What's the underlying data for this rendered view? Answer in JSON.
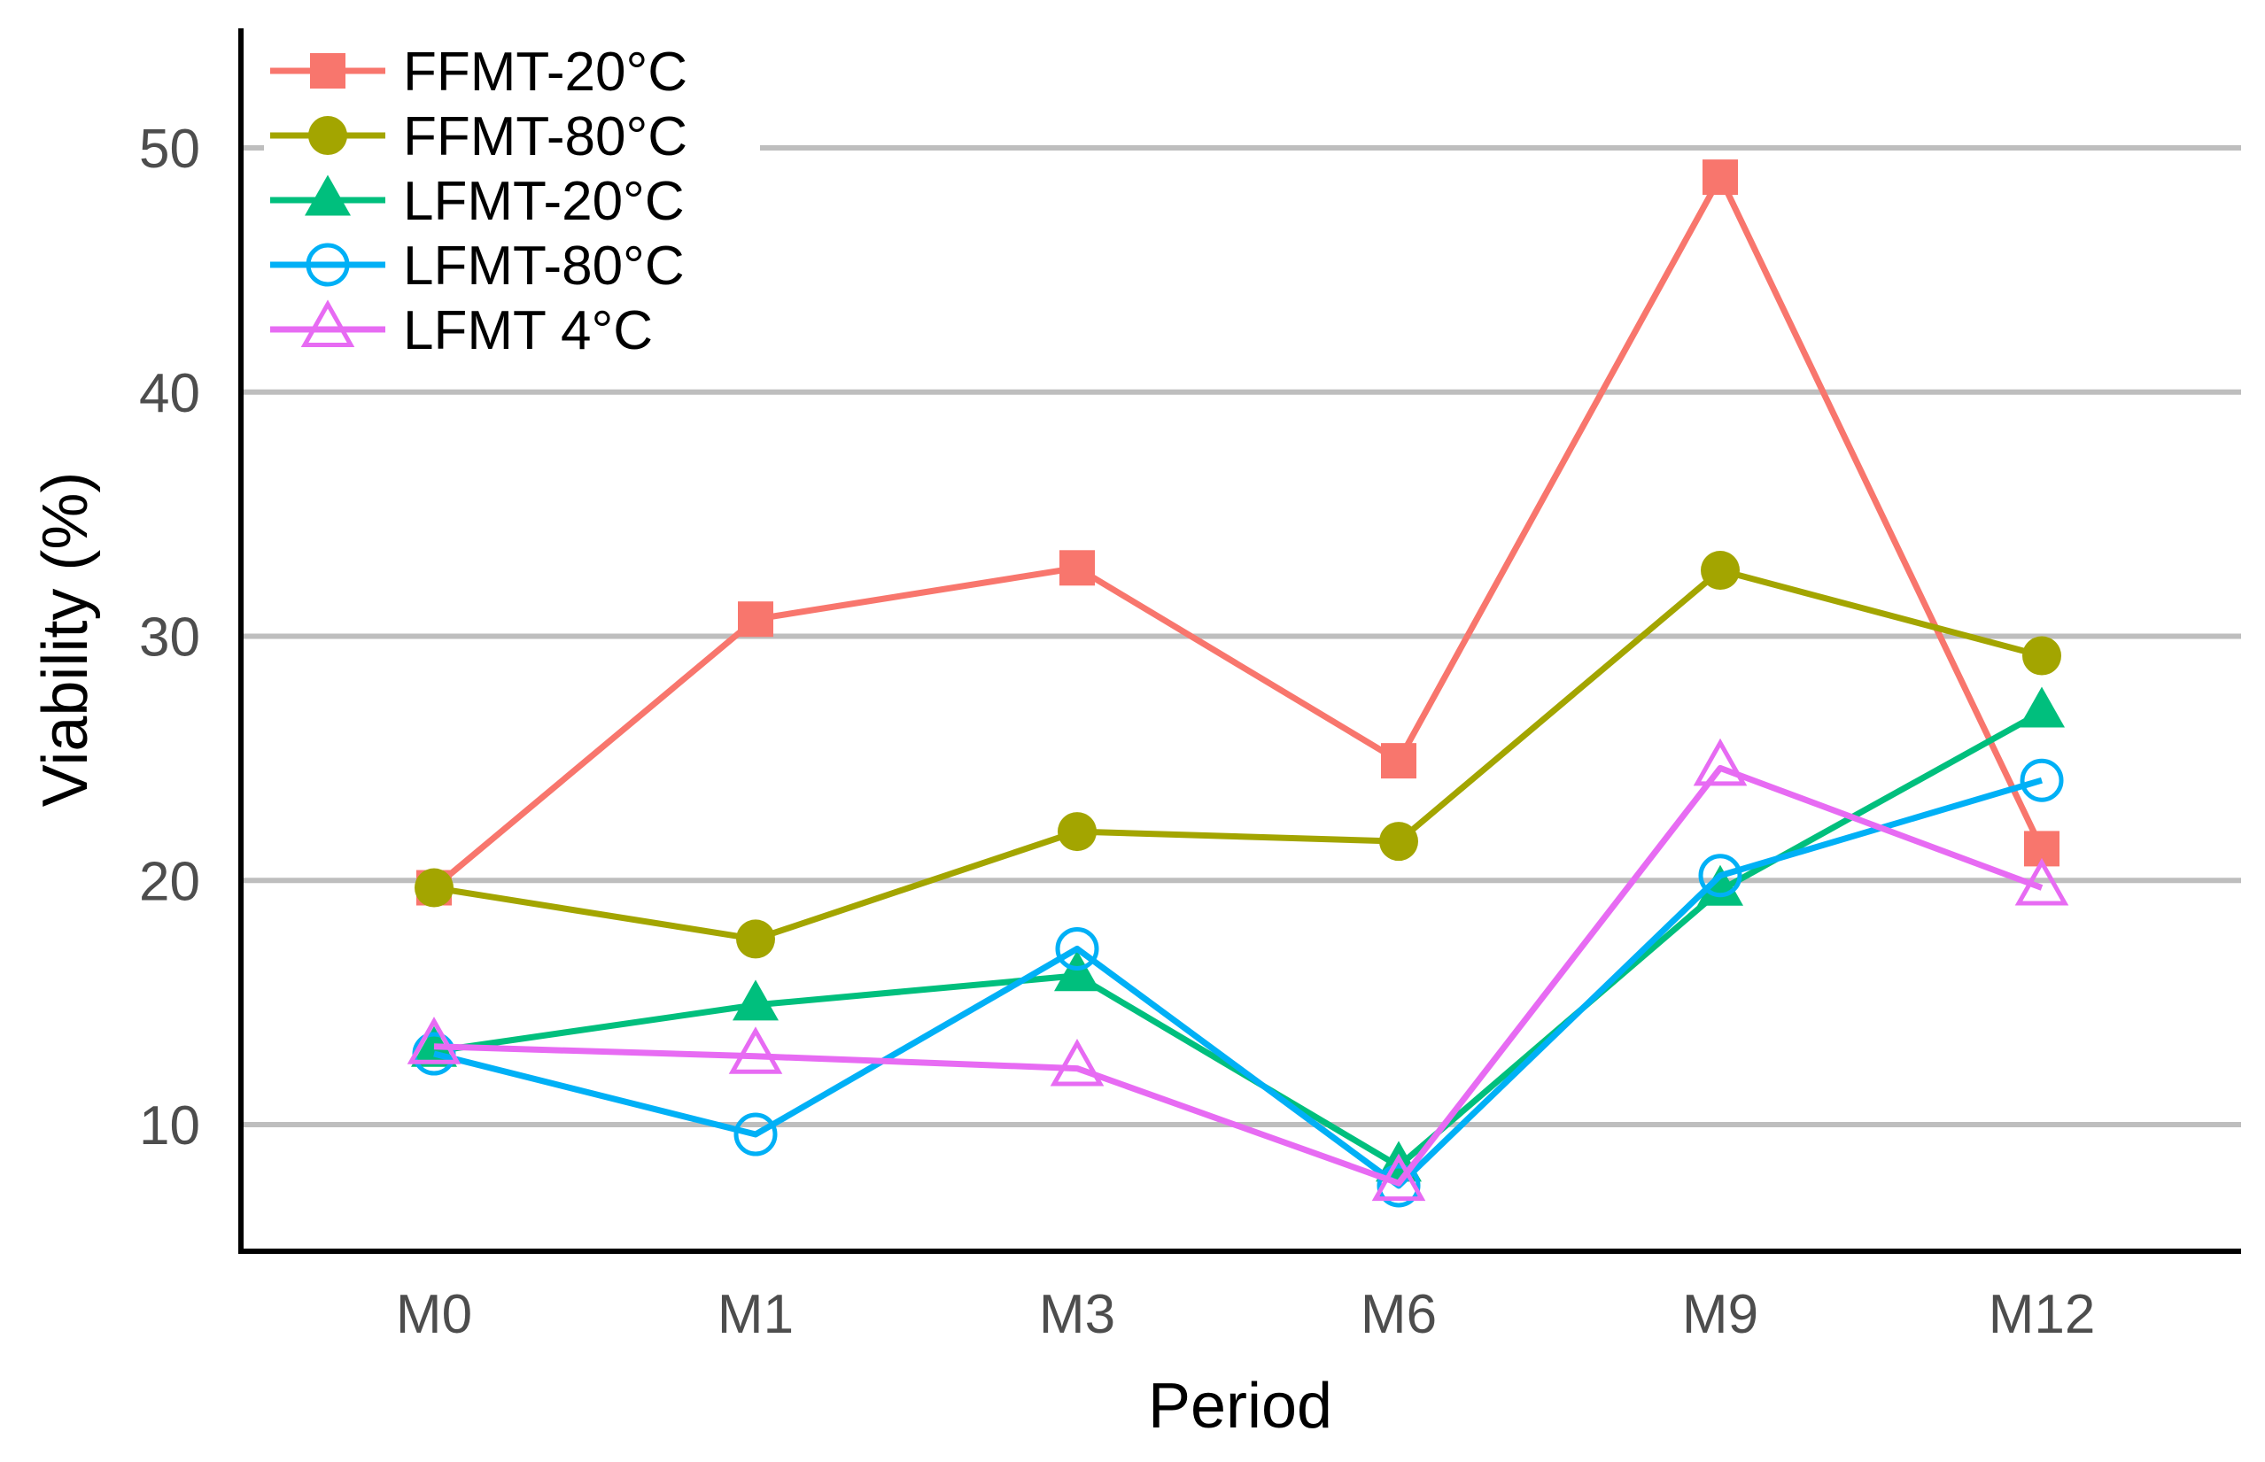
{
  "chart_data": {
    "type": "line",
    "title": "",
    "xlabel": "Period",
    "ylabel": "Viability (%)",
    "categories": [
      "M0",
      "M1",
      "M3",
      "M6",
      "M9",
      "M12"
    ],
    "ylim": [
      5,
      55
    ],
    "yticks": [
      10,
      20,
      30,
      40,
      50
    ],
    "grid": "horizontal",
    "legend_position": "top-left",
    "series": [
      {
        "name": "FFMT-20°C",
        "color": "#F8766D",
        "marker": "square-filled",
        "values": [
          19.7,
          30.7,
          32.8,
          24.9,
          48.8,
          21.3
        ]
      },
      {
        "name": "FFMT-80°C",
        "color": "#A3A500",
        "marker": "circle-filled",
        "values": [
          19.7,
          17.6,
          22.0,
          21.6,
          32.7,
          29.2
        ]
      },
      {
        "name": "LFMT-20°C",
        "color": "#00BF7D",
        "marker": "triangle-filled",
        "values": [
          13.0,
          14.9,
          16.1,
          8.3,
          19.6,
          26.9
        ]
      },
      {
        "name": "LFMT-80°C",
        "color": "#00B0F6",
        "marker": "circle-open",
        "values": [
          12.9,
          9.6,
          17.2,
          7.5,
          20.2,
          24.1
        ]
      },
      {
        "name": "LFMT 4°C",
        "color": "#E76BF3",
        "marker": "triangle-open",
        "values": [
          13.2,
          12.8,
          12.3,
          7.6,
          24.6,
          19.7
        ]
      }
    ]
  }
}
